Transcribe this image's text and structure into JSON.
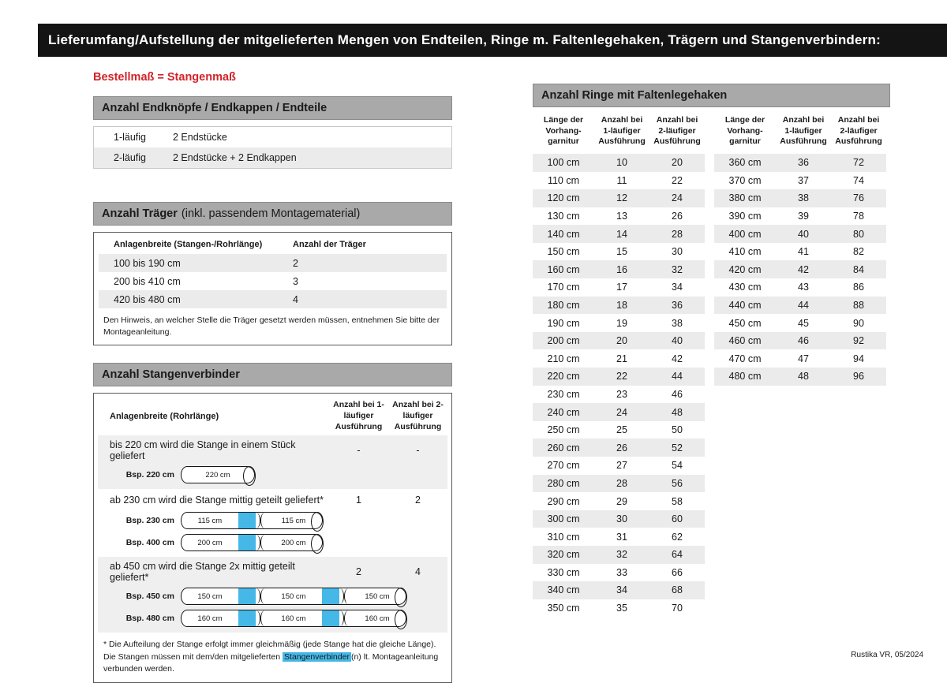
{
  "page": {
    "title": "Lieferumfang/Aufstellung der mitgelieferten Mengen von Endteilen, Ringe m. Faltenlegehaken, Trägern und Stangenverbindern:",
    "subtitle": "Bestellmaß = Stangenmaß",
    "footer": "Rustika VR, 05/2024"
  },
  "colors": {
    "accent_red": "#d2232a",
    "connector_cyan": "#45b8e8",
    "section_bar_gray": "#a9a9a9",
    "row_shade": "#ebebeb",
    "title_bar_black": "#141414"
  },
  "endteile": {
    "header": "Anzahl Endknöpfe / Endkappen / Endteile",
    "rows": [
      {
        "label": "1-läufig",
        "value": "2 Endstücke"
      },
      {
        "label": "2-läufig",
        "value": "2 Endstücke + 2 Endkappen"
      }
    ]
  },
  "traeger": {
    "header_bold": "Anzahl Träger",
    "header_rest": "(inkl. passendem Montagematerial)",
    "col_width": "Anlagenbreite (Stangen-/Rohrlänge)",
    "col_count": "Anzahl der Träger",
    "rows": [
      {
        "range": "100 bis 190 cm",
        "count": "2"
      },
      {
        "range": "200 bis 410 cm",
        "count": "3"
      },
      {
        "range": "420 bis 480 cm",
        "count": "4"
      }
    ],
    "note": "Den Hinweis, an welcher Stelle die Träger gesetzt werden müssen, entnehmen Sie bitte der Montageanleitung."
  },
  "verbinder": {
    "header": "Anzahl Stangenverbinder",
    "col_width": "Anlagenbreite (Rohrlänge)",
    "col_1l": "Anzahl bei 1-läufiger Ausführung",
    "col_2l": "Anzahl bei 2-läufiger Ausführung",
    "groups": [
      {
        "text": "bis 220 cm wird die Stange in einem Stück geliefert",
        "count_1l": "-",
        "count_2l": "-",
        "examples": [
          {
            "label": "Bsp. 220 cm",
            "segments": [
              "220 cm"
            ]
          }
        ]
      },
      {
        "text": "ab 230 cm wird die Stange mittig geteilt geliefert*",
        "count_1l": "1",
        "count_2l": "2",
        "examples": [
          {
            "label": "Bsp. 230 cm",
            "segments": [
              "115 cm",
              "115 cm"
            ]
          },
          {
            "label": "Bsp. 400 cm",
            "segments": [
              "200 cm",
              "200 cm"
            ]
          }
        ]
      },
      {
        "text": "ab 450 cm wird die Stange 2x mittig geteilt geliefert*",
        "count_1l": "2",
        "count_2l": "4",
        "examples": [
          {
            "label": "Bsp. 450 cm",
            "segments": [
              "150 cm",
              "150 cm",
              "150 cm"
            ]
          },
          {
            "label": "Bsp. 480 cm",
            "segments": [
              "160 cm",
              "160 cm",
              "160 cm"
            ]
          }
        ]
      }
    ],
    "footnote_pre": "* Die Aufteilung der Stange erfolgt immer gleichmäßig (jede Stange hat die gleiche Länge). Die Stangen müssen mit dem/den mitgelieferten ",
    "footnote_highlight": "Stangenverbinder",
    "footnote_post": "(n) lt. Montageanleitung verbunden werden."
  },
  "ringe": {
    "header": "Anzahl Ringe mit Faltenlegehaken",
    "col_length": "Länge der Vorhang-garnitur",
    "col_1l": "Anzahl bei 1-läufiger Ausführung",
    "col_2l": "Anzahl bei 2-läufiger Ausführung",
    "table1": [
      [
        "100 cm",
        "10",
        "20"
      ],
      [
        "110 cm",
        "11",
        "22"
      ],
      [
        "120 cm",
        "12",
        "24"
      ],
      [
        "130 cm",
        "13",
        "26"
      ],
      [
        "140 cm",
        "14",
        "28"
      ],
      [
        "150 cm",
        "15",
        "30"
      ],
      [
        "160 cm",
        "16",
        "32"
      ],
      [
        "170 cm",
        "17",
        "34"
      ],
      [
        "180 cm",
        "18",
        "36"
      ],
      [
        "190 cm",
        "19",
        "38"
      ],
      [
        "200 cm",
        "20",
        "40"
      ],
      [
        "210 cm",
        "21",
        "42"
      ],
      [
        "220 cm",
        "22",
        "44"
      ],
      [
        "230 cm",
        "23",
        "46"
      ],
      [
        "240 cm",
        "24",
        "48"
      ],
      [
        "250 cm",
        "25",
        "50"
      ],
      [
        "260 cm",
        "26",
        "52"
      ],
      [
        "270 cm",
        "27",
        "54"
      ],
      [
        "280 cm",
        "28",
        "56"
      ],
      [
        "290 cm",
        "29",
        "58"
      ],
      [
        "300 cm",
        "30",
        "60"
      ],
      [
        "310 cm",
        "31",
        "62"
      ],
      [
        "320 cm",
        "32",
        "64"
      ],
      [
        "330 cm",
        "33",
        "66"
      ],
      [
        "340 cm",
        "34",
        "68"
      ],
      [
        "350 cm",
        "35",
        "70"
      ]
    ],
    "table2": [
      [
        "360 cm",
        "36",
        "72"
      ],
      [
        "370 cm",
        "37",
        "74"
      ],
      [
        "380 cm",
        "38",
        "76"
      ],
      [
        "390 cm",
        "39",
        "78"
      ],
      [
        "400 cm",
        "40",
        "80"
      ],
      [
        "410 cm",
        "41",
        "82"
      ],
      [
        "420 cm",
        "42",
        "84"
      ],
      [
        "430 cm",
        "43",
        "86"
      ],
      [
        "440 cm",
        "44",
        "88"
      ],
      [
        "450 cm",
        "45",
        "90"
      ],
      [
        "460 cm",
        "46",
        "92"
      ],
      [
        "470 cm",
        "47",
        "94"
      ],
      [
        "480 cm",
        "48",
        "96"
      ]
    ]
  }
}
